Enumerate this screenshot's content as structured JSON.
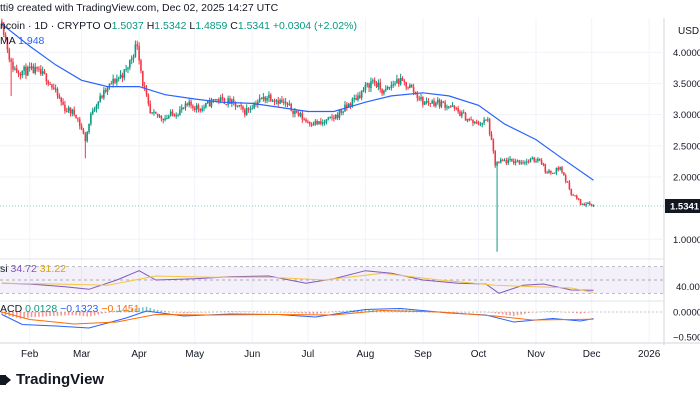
{
  "header": {
    "caption": "tti9 created with TradingView.com, Dec 02, 2025 14:27 UTC",
    "symbol": "ncoin · 1D · CRYPTO",
    "o_label": "O",
    "o_value": "1.5037",
    "h_label": "H",
    "h_value": "1.5342",
    "l_label": "L",
    "l_value": "1.4859",
    "c_label": "C",
    "c_value": "1.5341",
    "change": "+0.0304 (+2.02%)",
    "ma_label": "MA",
    "ma_value": "1.948"
  },
  "rsi_legend": {
    "label": "si",
    "value1": "34.72",
    "value2": "31.22"
  },
  "macd_legend": {
    "label": "ACD",
    "value1": "0.0128",
    "value2": "−0.1323",
    "value3": "−0.1451"
  },
  "brand": {
    "name": "TradingView"
  },
  "colors": {
    "up": "#089981",
    "down": "#f23645",
    "ma": "#2962ff",
    "rsi": "#7e57c2",
    "rsi_ma": "#f5c542",
    "macd": "#2962ff",
    "signal": "#ff6d00",
    "grid": "#f0f3fa",
    "axis_text": "#131722"
  },
  "chart_data": [
    {
      "type": "candlestick",
      "title": "",
      "price_axis_unit": "USD",
      "y_ticks": [
        "4.00000",
        "3.50000",
        "3.00000",
        "2.50000",
        "2.00000",
        "1.00000"
      ],
      "x_ticks": [
        "Feb",
        "Mar",
        "Apr",
        "May",
        "Jun",
        "Jul",
        "Aug",
        "Sep",
        "Oct",
        "Nov",
        "Dec",
        "2026"
      ],
      "ylim": [
        0.7,
        4.55
      ],
      "grid": true,
      "last_price_label": "1.5341",
      "price_path": [
        [
          "2025-01-17",
          4.5
        ],
        [
          "2025-01-22",
          3.8
        ],
        [
          "2025-01-25",
          3.7
        ],
        [
          "2025-02-04",
          3.7
        ],
        [
          "2025-02-10",
          3.6
        ],
        [
          "2025-02-20",
          3.1
        ],
        [
          "2025-02-26",
          3.0
        ],
        [
          "2025-03-03",
          2.6
        ],
        [
          "2025-03-07",
          3.1
        ],
        [
          "2025-03-12",
          3.3
        ],
        [
          "2025-03-17",
          3.5
        ],
        [
          "2025-03-25",
          3.7
        ],
        [
          "2025-03-31",
          4.15
        ],
        [
          "2025-04-03",
          3.5
        ],
        [
          "2025-04-07",
          3.0
        ],
        [
          "2025-04-15",
          2.95
        ],
        [
          "2025-04-22",
          3.05
        ],
        [
          "2025-04-28",
          3.15
        ],
        [
          "2025-05-05",
          3.1
        ],
        [
          "2025-05-12",
          3.25
        ],
        [
          "2025-05-20",
          3.2
        ],
        [
          "2025-05-28",
          3.05
        ],
        [
          "2025-06-03",
          3.2
        ],
        [
          "2025-06-10",
          3.3
        ],
        [
          "2025-06-17",
          3.2
        ],
        [
          "2025-06-24",
          3.05
        ],
        [
          "2025-06-30",
          2.9
        ],
        [
          "2025-07-08",
          2.85
        ],
        [
          "2025-07-15",
          2.95
        ],
        [
          "2025-07-21",
          3.1
        ],
        [
          "2025-07-28",
          3.3
        ],
        [
          "2025-08-05",
          3.55
        ],
        [
          "2025-08-11",
          3.35
        ],
        [
          "2025-08-18",
          3.55
        ],
        [
          "2025-08-25",
          3.45
        ],
        [
          "2025-09-01",
          3.2
        ],
        [
          "2025-09-08",
          3.2
        ],
        [
          "2025-09-15",
          3.15
        ],
        [
          "2025-09-22",
          3.0
        ],
        [
          "2025-09-29",
          2.85
        ],
        [
          "2025-10-06",
          2.9
        ],
        [
          "2025-10-10",
          2.2
        ],
        [
          "2025-10-14",
          2.25
        ],
        [
          "2025-10-21",
          2.25
        ],
        [
          "2025-10-28",
          2.25
        ],
        [
          "2025-11-03",
          2.3
        ],
        [
          "2025-11-07",
          2.05
        ],
        [
          "2025-11-14",
          2.15
        ],
        [
          "2025-11-20",
          1.75
        ],
        [
          "2025-11-26",
          1.55
        ],
        [
          "2025-11-29",
          1.6
        ],
        [
          "2025-12-02",
          1.5341
        ]
      ],
      "wick_spikes": [
        {
          "date": "2025-01-22",
          "low": 3.3
        },
        {
          "date": "2025-03-03",
          "low": 2.3
        },
        {
          "date": "2025-10-11",
          "low": 0.8
        }
      ],
      "ma_series": [
        [
          "2025-01-17",
          4.45
        ],
        [
          "2025-02-01",
          4.1
        ],
        [
          "2025-02-15",
          3.8
        ],
        [
          "2025-03-01",
          3.55
        ],
        [
          "2025-03-15",
          3.45
        ],
        [
          "2025-04-01",
          3.45
        ],
        [
          "2025-04-15",
          3.32
        ],
        [
          "2025-05-01",
          3.25
        ],
        [
          "2025-05-15",
          3.2
        ],
        [
          "2025-06-01",
          3.18
        ],
        [
          "2025-06-15",
          3.12
        ],
        [
          "2025-07-01",
          3.05
        ],
        [
          "2025-07-15",
          3.05
        ],
        [
          "2025-08-01",
          3.2
        ],
        [
          "2025-08-15",
          3.3
        ],
        [
          "2025-09-01",
          3.35
        ],
        [
          "2025-09-15",
          3.3
        ],
        [
          "2025-10-01",
          3.15
        ],
        [
          "2025-10-15",
          2.85
        ],
        [
          "2025-11-01",
          2.6
        ],
        [
          "2025-11-15",
          2.3
        ],
        [
          "2025-12-02",
          1.948
        ]
      ]
    },
    {
      "type": "line",
      "title": "",
      "y_ticks": [
        "40.00"
      ],
      "ylim": [
        20,
        80
      ],
      "series": [
        {
          "key": "rsi",
          "values": [
            [
              "2025-01-17",
              45
            ],
            [
              "2025-02-01",
              44
            ],
            [
              "2025-02-20",
              40
            ],
            [
              "2025-03-05",
              36
            ],
            [
              "2025-03-20",
              50
            ],
            [
              "2025-04-01",
              64
            ],
            [
              "2025-04-10",
              50
            ],
            [
              "2025-05-01",
              52
            ],
            [
              "2025-05-20",
              55
            ],
            [
              "2025-06-10",
              56
            ],
            [
              "2025-06-30",
              45
            ],
            [
              "2025-07-15",
              52
            ],
            [
              "2025-08-01",
              64
            ],
            [
              "2025-08-15",
              60
            ],
            [
              "2025-09-01",
              50
            ],
            [
              "2025-09-20",
              45
            ],
            [
              "2025-10-05",
              44
            ],
            [
              "2025-10-12",
              30
            ],
            [
              "2025-10-25",
              42
            ],
            [
              "2025-11-05",
              44
            ],
            [
              "2025-11-20",
              35
            ],
            [
              "2025-12-02",
              34.72
            ]
          ]
        },
        {
          "key": "rsi_ma",
          "values": [
            [
              "2025-01-17",
              45
            ],
            [
              "2025-02-15",
              44
            ],
            [
              "2025-03-15",
              42
            ],
            [
              "2025-04-10",
              56
            ],
            [
              "2025-05-10",
              54
            ],
            [
              "2025-06-10",
              54
            ],
            [
              "2025-07-10",
              50
            ],
            [
              "2025-08-10",
              60
            ],
            [
              "2025-09-10",
              50
            ],
            [
              "2025-10-10",
              42
            ],
            [
              "2025-11-01",
              40
            ],
            [
              "2025-11-20",
              38
            ],
            [
              "2025-12-02",
              31.22
            ]
          ]
        }
      ]
    },
    {
      "type": "line",
      "title": "",
      "y_ticks": [
        "0.0000",
        "−0.5000"
      ],
      "ylim": [
        -0.62,
        0.2
      ],
      "series": [
        {
          "key": "macd",
          "values": [
            [
              "2025-01-17",
              -0.05
            ],
            [
              "2025-01-28",
              -0.25
            ],
            [
              "2025-02-15",
              -0.28
            ],
            [
              "2025-03-05",
              -0.32
            ],
            [
              "2025-03-25",
              -0.12
            ],
            [
              "2025-04-05",
              0.02
            ],
            [
              "2025-04-25",
              -0.08
            ],
            [
              "2025-05-20",
              -0.04
            ],
            [
              "2025-06-15",
              -0.05
            ],
            [
              "2025-07-05",
              -0.1
            ],
            [
              "2025-08-01",
              0.05
            ],
            [
              "2025-08-20",
              0.07
            ],
            [
              "2025-09-15",
              -0.02
            ],
            [
              "2025-10-05",
              -0.06
            ],
            [
              "2025-10-20",
              -0.2
            ],
            [
              "2025-11-10",
              -0.13
            ],
            [
              "2025-11-25",
              -0.18
            ],
            [
              "2025-12-02",
              -0.1323
            ]
          ]
        },
        {
          "key": "signal",
          "values": [
            [
              "2025-01-17",
              0.0
            ],
            [
              "2025-02-01",
              -0.15
            ],
            [
              "2025-02-25",
              -0.24
            ],
            [
              "2025-03-20",
              -0.2
            ],
            [
              "2025-04-10",
              -0.05
            ],
            [
              "2025-05-10",
              -0.06
            ],
            [
              "2025-06-15",
              -0.05
            ],
            [
              "2025-07-15",
              -0.06
            ],
            [
              "2025-08-10",
              0.03
            ],
            [
              "2025-09-10",
              0.0
            ],
            [
              "2025-10-10",
              -0.08
            ],
            [
              "2025-10-30",
              -0.16
            ],
            [
              "2025-11-20",
              -0.15
            ],
            [
              "2025-12-02",
              -0.1451
            ]
          ]
        }
      ]
    }
  ]
}
